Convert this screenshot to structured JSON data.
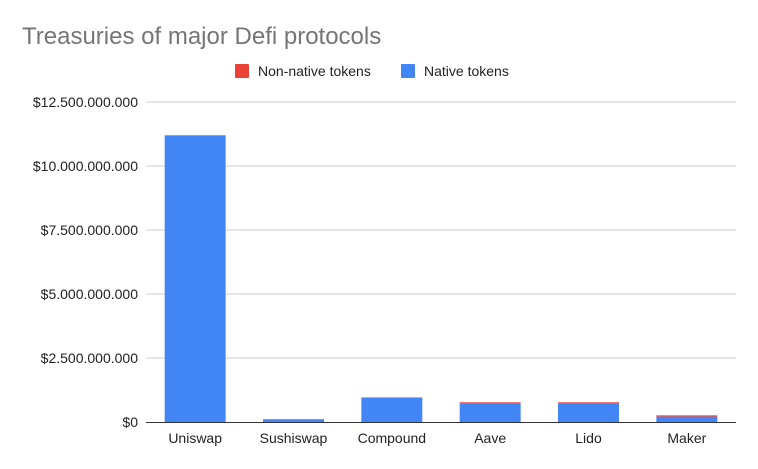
{
  "chart_data": {
    "type": "bar",
    "stacked": true,
    "title": "Treasuries of major Defi protocols",
    "xlabel": "",
    "ylabel": "",
    "categories": [
      "Uniswap",
      "Sushiswap",
      "Compound",
      "Aave",
      "Lido",
      "Maker"
    ],
    "series": [
      {
        "name": "Native tokens",
        "color": "#4285f4",
        "values": [
          11200000000,
          110000000,
          960000000,
          730000000,
          730000000,
          210000000
        ]
      },
      {
        "name": "Non-native tokens",
        "color": "#ea4335",
        "values": [
          0,
          0,
          0,
          40000000,
          40000000,
          50000000
        ]
      }
    ],
    "legend_order": [
      "Non-native tokens",
      "Native tokens"
    ],
    "legend_position": "top-center",
    "ylim": [
      0,
      12500000000
    ],
    "yticks": [
      0,
      2500000000,
      5000000000,
      7500000000,
      10000000000,
      12500000000
    ],
    "ytick_labels": [
      "$0",
      "$2.500.000.000",
      "$5.000.000.000",
      "$7.500.000.000",
      "$10.000.000.000",
      "$12.500.000.000"
    ],
    "grid": true,
    "grid_color": "#cccccc",
    "axis_color": "#333333"
  }
}
